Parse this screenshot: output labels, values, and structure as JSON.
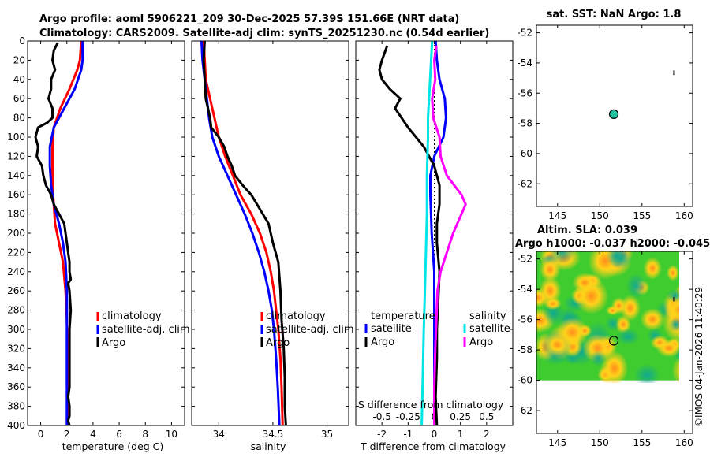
{
  "header": {
    "line1": "Argo profile: aoml 5906221_209 30-Dec-2025 57.39S 151.66E (NRT data)",
    "line2": "Climatology: CARS2009. Satellite-adj clim: synTS_20251230.nc (0.54d earlier)"
  },
  "credit": "©IMOS 04-Jan-2026 11:40:29",
  "colors": {
    "climatology": "#ff0000",
    "satellite": "#0000ff",
    "argo": "#000000",
    "sat_salinity": "#00e5e5",
    "argo_salinity": "#ff00ff"
  },
  "chart_data": [
    {
      "type": "line",
      "id": "temperature",
      "xlabel": "temperature (deg C)",
      "xlim": [
        -1,
        11
      ],
      "ylim": [
        0,
        400
      ],
      "xticks": [
        0,
        2,
        4,
        6,
        8,
        10
      ],
      "xtick_labels": [
        "0",
        "2",
        "4",
        "6",
        "8",
        "10"
      ],
      "yticks": [
        0,
        20,
        40,
        60,
        80,
        100,
        120,
        140,
        160,
        180,
        200,
        220,
        240,
        260,
        280,
        300,
        320,
        340,
        360,
        380,
        400
      ],
      "ytick_labels": [
        "0",
        "20",
        "40",
        "60",
        "80",
        "100",
        "120",
        "140",
        "160",
        "180",
        "200",
        "220",
        "240",
        "260",
        "280",
        "300",
        "320",
        "340",
        "360",
        "380",
        "400"
      ],
      "legend": [
        "climatology",
        "satellite-adj. clim",
        "Argo"
      ],
      "series": [
        {
          "name": "climatology",
          "color": "#ff0000",
          "x": [
            3.1,
            3.0,
            2.8,
            2.2,
            1.5,
            1.0,
            0.9,
            0.9,
            0.9,
            1.0,
            1.1,
            1.4,
            1.7,
            1.9,
            2.0,
            2.05,
            2.05,
            2.05,
            2.05,
            2.05,
            2.05
          ],
          "depth": [
            0,
            20,
            30,
            50,
            70,
            90,
            110,
            130,
            150,
            170,
            190,
            210,
            230,
            260,
            290,
            320,
            350,
            380,
            390,
            395,
            400
          ]
        },
        {
          "name": "satellite-adj. clim",
          "color": "#0000ff",
          "x": [
            3.2,
            3.2,
            3.1,
            2.6,
            1.8,
            1.0,
            0.7,
            0.7,
            0.8,
            1.0,
            1.4,
            1.7,
            1.9,
            2.0,
            2.0,
            2.0,
            2.0,
            2.0,
            2.0
          ],
          "depth": [
            0,
            20,
            30,
            50,
            70,
            90,
            110,
            130,
            150,
            170,
            190,
            210,
            230,
            260,
            290,
            320,
            350,
            380,
            400
          ]
        },
        {
          "name": "Argo",
          "color": "#000000",
          "x": [
            1.3,
            1.0,
            0.9,
            1.1,
            0.8,
            0.8,
            0.6,
            0.9,
            0.9,
            0.5,
            -0.2,
            -0.4,
            -0.2,
            -0.3,
            0.1,
            0.2,
            0.4,
            0.8,
            1.0,
            1.4,
            1.8,
            1.9,
            2.0,
            2.1,
            2.2,
            2.2,
            2.3,
            2.1,
            2.2,
            2.3,
            2.2,
            2.2,
            2.2,
            2.2,
            2.2,
            2.1,
            2.2,
            2.2,
            2.2,
            2.1,
            2.2
          ],
          "depth": [
            2,
            10,
            20,
            30,
            40,
            50,
            60,
            70,
            80,
            85,
            90,
            100,
            110,
            120,
            130,
            140,
            150,
            160,
            170,
            180,
            190,
            200,
            210,
            220,
            230,
            240,
            248,
            252,
            260,
            280,
            300,
            320,
            340,
            350,
            360,
            370,
            380,
            385,
            390,
            395,
            400
          ]
        }
      ]
    },
    {
      "type": "line",
      "id": "salinity",
      "xlabel": "salinity",
      "xlim": [
        33.75,
        35.2
      ],
      "ylim": [
        0,
        400
      ],
      "xticks": [
        34,
        34.5,
        35
      ],
      "xtick_labels": [
        "34",
        "34.5",
        "35"
      ],
      "legend": [
        "climatology",
        "satellite-adj. clim",
        "Argo"
      ],
      "series": [
        {
          "name": "climatology",
          "color": "#ff0000",
          "x": [
            33.86,
            33.87,
            33.88,
            33.92,
            33.96,
            34.0,
            34.06,
            34.13,
            34.2,
            34.3,
            34.38,
            34.44,
            34.48,
            34.51,
            34.53,
            34.55,
            34.57,
            34.58,
            34.59
          ],
          "depth": [
            0,
            20,
            40,
            60,
            80,
            100,
            120,
            140,
            160,
            180,
            200,
            220,
            240,
            260,
            280,
            300,
            330,
            360,
            400
          ]
        },
        {
          "name": "satellite-adj. clim",
          "color": "#0000ff",
          "x": [
            33.84,
            33.85,
            33.87,
            33.89,
            33.91,
            33.94,
            34.0,
            34.08,
            34.16,
            34.24,
            34.31,
            34.37,
            34.42,
            34.46,
            34.49,
            34.51,
            34.53,
            34.545,
            34.56
          ],
          "depth": [
            0,
            20,
            40,
            60,
            80,
            100,
            120,
            140,
            160,
            180,
            200,
            220,
            240,
            260,
            280,
            300,
            330,
            360,
            400
          ]
        },
        {
          "name": "Argo",
          "color": "#000000",
          "x": [
            33.87,
            33.86,
            33.87,
            33.88,
            33.9,
            33.92,
            33.93,
            34.0,
            34.05,
            34.08,
            34.12,
            34.15,
            34.22,
            34.3,
            34.38,
            34.46,
            34.5,
            34.55,
            34.57,
            34.58,
            34.6,
            34.61,
            34.61,
            34.62
          ],
          "depth": [
            0,
            20,
            40,
            60,
            70,
            80,
            90,
            100,
            110,
            120,
            130,
            140,
            150,
            160,
            175,
            190,
            210,
            230,
            260,
            290,
            320,
            350,
            380,
            400
          ]
        }
      ]
    },
    {
      "type": "line",
      "id": "difference",
      "xlabel": "T difference from climatology",
      "xlabel_top": "S difference from climatology",
      "xlim": [
        -3,
        3
      ],
      "ylim": [
        0,
        400
      ],
      "xticks": [
        -2,
        -1,
        0,
        1,
        2
      ],
      "xtick_labels": [
        "-2",
        "-1",
        "0",
        "1",
        "2"
      ],
      "top_xticks": [
        -0.5,
        -0.25,
        0,
        0.25,
        0.5
      ],
      "top_xtick_labels": [
        "-0.5",
        "-0.25",
        "0",
        "0.25",
        "0.5"
      ],
      "legend_t": {
        "title": "temperature",
        "items": [
          "satellite",
          "Argo"
        ]
      },
      "legend_s": {
        "title": "salinity",
        "items": [
          "satellite",
          "Argo"
        ]
      },
      "series": [
        {
          "name": "T satellite",
          "color": "#0000ff",
          "x": [
            0.05,
            0.1,
            0.2,
            0.4,
            0.45,
            0.35,
            0.0,
            -0.15,
            -0.15,
            -0.1,
            0.0,
            0.0,
            0.0,
            0.0,
            0.0
          ],
          "depth": [
            0,
            20,
            40,
            60,
            80,
            100,
            120,
            140,
            160,
            200,
            240,
            280,
            320,
            360,
            400
          ]
        },
        {
          "name": "T Argo",
          "color": "#000000",
          "x": [
            -1.8,
            -2.0,
            -2.1,
            -2.0,
            -1.7,
            -1.3,
            -1.5,
            -1.0,
            -0.4,
            0.0,
            0.2,
            0.2,
            0.1,
            0.1,
            0.2,
            0.15,
            0.1,
            0.1,
            0.05,
            0.1
          ],
          "depth": [
            5,
            20,
            30,
            40,
            50,
            60,
            70,
            90,
            110,
            130,
            150,
            170,
            190,
            210,
            240,
            270,
            300,
            330,
            370,
            400
          ]
        },
        {
          "name": "S satellite",
          "color": "#00e5e5",
          "x": [
            -0.02,
            -0.03,
            -0.04,
            -0.05,
            -0.06,
            -0.06,
            -0.07,
            -0.07,
            -0.08,
            -0.09,
            -0.1,
            -0.11,
            -0.12
          ],
          "depth": [
            0,
            20,
            40,
            60,
            80,
            100,
            140,
            180,
            220,
            260,
            300,
            350,
            400
          ]
        },
        {
          "name": "S Argo",
          "color": "#ff00ff",
          "x": [
            0.02,
            0.0,
            0.01,
            -0.02,
            -0.01,
            0.05,
            0.06,
            0.12,
            0.26,
            0.3,
            0.26,
            0.18,
            0.12,
            0.06,
            0.03,
            0.02,
            0.01,
            0.0,
            0.0
          ],
          "depth": [
            5,
            20,
            40,
            60,
            80,
            100,
            120,
            140,
            160,
            170,
            180,
            200,
            220,
            240,
            260,
            290,
            320,
            360,
            400
          ]
        }
      ]
    },
    {
      "type": "scatter",
      "id": "sst_map",
      "title": "sat. SST: NaN Argo: 1.8",
      "xlim": [
        142.5,
        161
      ],
      "ylim": [
        -63.5,
        -51.5
      ],
      "xticks": [
        145,
        150,
        155,
        160
      ],
      "xtick_labels": [
        "145",
        "150",
        "155",
        "160"
      ],
      "yticks": [
        -62,
        -60,
        -58,
        -56,
        -54,
        -52
      ],
      "ytick_labels": [
        "-62",
        "-60",
        "-58",
        "-56",
        "-54",
        "-52"
      ],
      "points": [
        {
          "lon": 151.66,
          "lat": -57.39,
          "color": "#20c0a0"
        }
      ]
    },
    {
      "type": "heatmap",
      "id": "sla_map",
      "title": "Altim. SLA: 0.039",
      "subtitle": "Argo h1000: -0.037 h2000: -0.045",
      "xlim": [
        142.5,
        161
      ],
      "ylim": [
        -63.5,
        -51.5
      ],
      "data_extent": {
        "lon": [
          142.5,
          161
        ],
        "lat": [
          -60,
          -51.5
        ]
      },
      "xticks": [
        145,
        150,
        155,
        160
      ],
      "xtick_labels": [
        "145",
        "150",
        "155",
        "160"
      ],
      "yticks": [
        -62,
        -60,
        -58,
        -56,
        -54,
        -52
      ],
      "ytick_labels": [
        "-62",
        "-60",
        "-58",
        "-56",
        "-54",
        "-52"
      ],
      "points": [
        {
          "lon": 151.66,
          "lat": -57.39
        }
      ]
    }
  ]
}
